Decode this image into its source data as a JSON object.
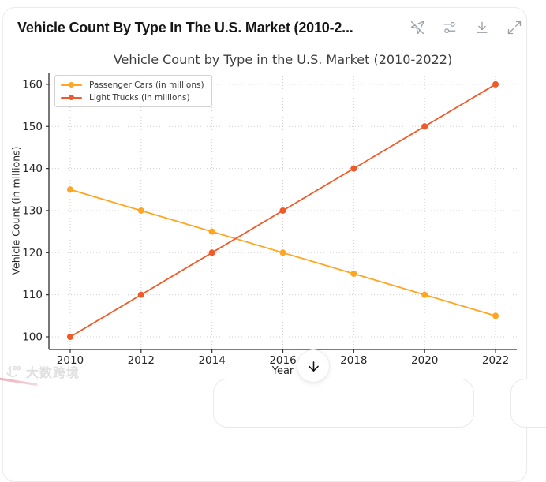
{
  "header": {
    "title": "Vehicle Count By Type In The U.S. Market (2010-2...",
    "toolbar": [
      {
        "icon": "pointer-off"
      },
      {
        "icon": "sliders"
      },
      {
        "icon": "download"
      },
      {
        "icon": "expand"
      }
    ]
  },
  "chart_data": {
    "type": "line",
    "title": "Vehicle Count by Type in the U.S. Market (2010-2022)",
    "xlabel": "Year",
    "ylabel": "Vehicle Count (in millions)",
    "x": [
      2010,
      2012,
      2014,
      2016,
      2018,
      2020,
      2022
    ],
    "series": [
      {
        "name": "Passenger Cars (in millions)",
        "color": "#FFA51F",
        "values": [
          135,
          130,
          125,
          120,
          115,
          110,
          105
        ]
      },
      {
        "name": "Light Trucks (in millions)",
        "color": "#F05A28",
        "values": [
          100,
          110,
          120,
          130,
          140,
          150,
          160
        ]
      }
    ],
    "xticks": [
      2010,
      2012,
      2014,
      2016,
      2018,
      2020,
      2022
    ],
    "yticks": [
      100,
      110,
      120,
      130,
      140,
      150,
      160
    ],
    "xlim": [
      2009.4,
      2022.6
    ],
    "ylim": [
      97,
      162.8
    ],
    "grid": true,
    "grid_style": "dotted",
    "legend_position": "upper left",
    "colors": {
      "spine": "#2e2e2e",
      "gridline": "#cfcfcf"
    }
  },
  "overlay": {
    "scroll_button_icon": "arrow-down"
  },
  "watermark": {
    "text": "大数跨境"
  }
}
